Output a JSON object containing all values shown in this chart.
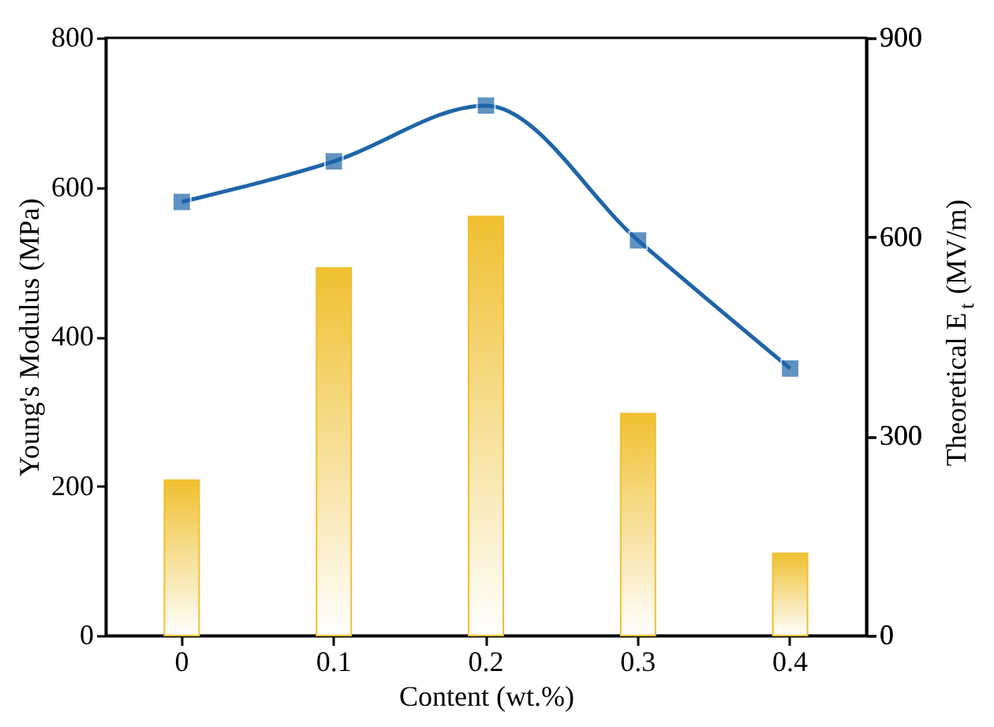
{
  "chart_data": {
    "type": "bar",
    "xlabel": "Content (wt.%)",
    "ylabel": "Young's Modulus (MPa)",
    "y2label": "Theoretical E$_{t}$ (MV/m)",
    "categories": [
      "0",
      "0.1",
      "0.2",
      "0.3",
      "0.4"
    ],
    "series": [
      {
        "type": "bar",
        "color": "#f0c030",
        "values": [
          208,
          492,
          561,
          297,
          110
        ]
      },
      {
        "type": "line",
        "axis": "y2",
        "color": "#1f65a8",
        "marker": "square",
        "values": [
          653,
          714,
          798,
          595,
          402
        ]
      }
    ],
    "ylim": [
      0,
      800
    ],
    "yticks": [
      0,
      200,
      400,
      600,
      800
    ],
    "y2lim": [
      0,
      900
    ],
    "y2ticks": [
      0,
      300,
      600,
      900
    ],
    "grid": false
  }
}
